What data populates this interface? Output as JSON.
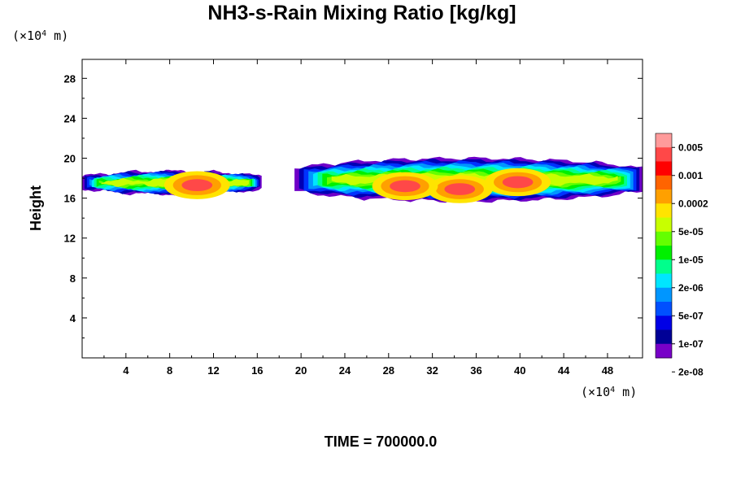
{
  "chart_data": {
    "type": "heatmap",
    "title": "NH3-s-Rain Mixing Ratio [kg/kg]",
    "ylabel": "Height",
    "xlabel": "",
    "x_unit": {
      "prefix": "(×10",
      "exp": "4",
      "suffix": " m)"
    },
    "y_unit": {
      "prefix": "(×10",
      "exp": "4",
      "suffix": " m)"
    },
    "xlim": [
      0,
      51.2
    ],
    "ylim": [
      0,
      29.9
    ],
    "x_ticks": [
      4,
      8,
      12,
      16,
      20,
      24,
      28,
      32,
      36,
      40,
      44,
      48
    ],
    "y_ticks": [
      4,
      8,
      12,
      16,
      20,
      24,
      28
    ],
    "x_tick_labels": [
      "4",
      "8",
      "12",
      "16",
      "20",
      "24",
      "28",
      "32",
      "36",
      "40",
      "44",
      "48"
    ],
    "y_tick_labels": [
      "4",
      "8",
      "12",
      "16",
      "20",
      "24",
      "28"
    ],
    "footer": "TIME = 700000.0",
    "colorbar": {
      "labels": [
        "0.005",
        "0.001",
        "0.0002",
        "5e-05",
        "1e-05",
        "2e-06",
        "5e-07",
        "1e-07",
        "2e-08"
      ],
      "colors": [
        "#ff9b9b",
        "#ff4848",
        "#ff0000",
        "#ff6400",
        "#ffa000",
        "#ffe400",
        "#c8ff00",
        "#64ff00",
        "#00f000",
        "#00ff8c",
        "#00e6ff",
        "#0096ff",
        "#0050ff",
        "#0000e6",
        "#000096",
        "#7800c8"
      ]
    },
    "clouds": [
      {
        "x0": 0.0,
        "x1": 16.4,
        "base": 16.6,
        "top": 18.9
      },
      {
        "x0": 19.4,
        "x1": 51.2,
        "base": 15.9,
        "top": 20.2
      }
    ],
    "cores": [
      {
        "x": 10.5,
        "y": 17.3,
        "level": 2
      },
      {
        "x": 34.5,
        "y": 16.9,
        "level": 2
      },
      {
        "x": 39.8,
        "y": 17.6,
        "level": 2
      },
      {
        "x": 29.5,
        "y": 17.2,
        "level": 3
      }
    ]
  }
}
